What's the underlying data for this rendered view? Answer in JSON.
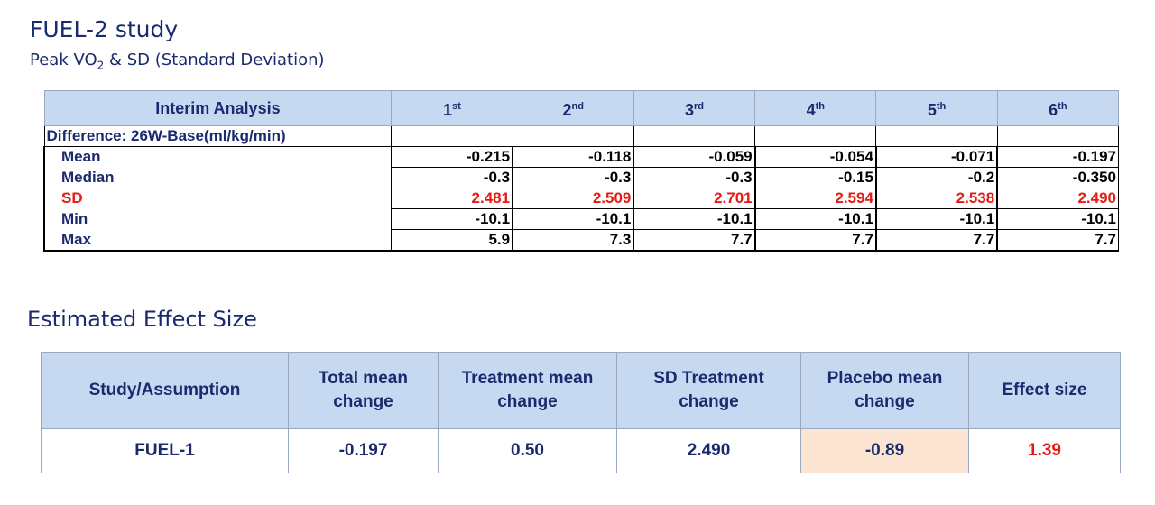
{
  "header": {
    "title": "FUEL-2 study",
    "subtitle_pre": "Peak VO",
    "subtitle_sub": "2",
    "subtitle_post": " & SD (Standard Deviation)"
  },
  "table1": {
    "header_label": "Interim Analysis",
    "columns": [
      {
        "num": "1",
        "sup": "st"
      },
      {
        "num": "2",
        "sup": "nd"
      },
      {
        "num": "3",
        "sup": "rd"
      },
      {
        "num": "4",
        "sup": "th"
      },
      {
        "num": "5",
        "sup": "th"
      },
      {
        "num": "6",
        "sup": "th"
      }
    ],
    "difference_label": "Difference: 26W-Base(ml/kg/min)",
    "rows": [
      {
        "label": "Mean",
        "values": [
          "-0.215",
          "-0.118",
          "-0.059",
          "-0.054",
          "-0.071",
          "-0.197"
        ]
      },
      {
        "label": "Median",
        "values": [
          "-0.3",
          "-0.3",
          "-0.3",
          "-0.15",
          "-0.2",
          "-0.350"
        ]
      },
      {
        "label": "SD",
        "values": [
          "2.481",
          "2.509",
          "2.701",
          "2.594",
          "2.538",
          "2.490"
        ]
      },
      {
        "label": "Min",
        "values": [
          "-10.1",
          "-10.1",
          "-10.1",
          "-10.1",
          "-10.1",
          "-10.1"
        ]
      },
      {
        "label": "Max",
        "values": [
          "5.9",
          "7.3",
          "7.7",
          "7.7",
          "7.7",
          "7.7"
        ]
      }
    ]
  },
  "section2": {
    "title": "Estimated Effect Size"
  },
  "table2": {
    "headers": {
      "study_l1": "Study/Assumption",
      "total_l1": "Total mean",
      "total_l2": "change",
      "treat_l1": "Treatment mean",
      "treat_l2": "change",
      "sd_l1": "SD Treatment",
      "sd_l2": "change",
      "placebo_l1": "Placebo mean",
      "placebo_l2": "change",
      "effect_l1": "Effect size"
    },
    "row": {
      "study": "FUEL-1",
      "total": "-0.197",
      "treatment": "0.50",
      "sd": "2.490",
      "placebo": "-0.89",
      "effect": "1.39"
    }
  },
  "colors": {
    "title": "#1a2a6e",
    "header_fill": "#c7d9f1",
    "highlight_red": "#e41b13",
    "placebo_fill": "#fce4d2"
  }
}
